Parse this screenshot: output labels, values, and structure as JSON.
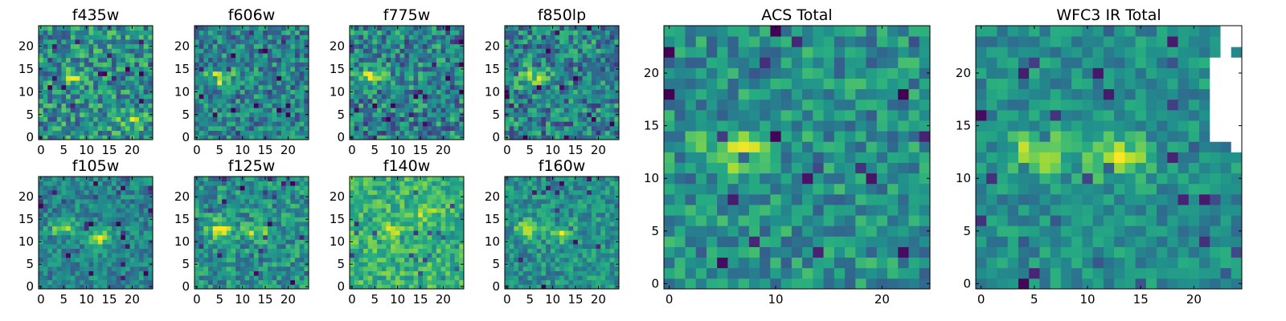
{
  "figure": {
    "background": "#ffffff",
    "colormap": "viridis",
    "missing_color": "#ffffff"
  },
  "chart_data": [
    {
      "type": "heatmap",
      "title": "f435w",
      "xlim": [
        0,
        24
      ],
      "ylim": [
        0,
        24
      ],
      "xticks": [
        0,
        5,
        10,
        15,
        20
      ],
      "yticks": [
        0,
        5,
        10,
        15,
        20
      ],
      "grid": false,
      "cells_per_side": 25,
      "sources": [
        {
          "x": 7,
          "y": 13,
          "strength": 0.35
        },
        {
          "x": 20,
          "y": 4,
          "strength": 0.25
        }
      ],
      "noise_level": 0.45,
      "base_level": 0.5
    },
    {
      "type": "heatmap",
      "title": "f606w",
      "xlim": [
        0,
        24
      ],
      "ylim": [
        0,
        24
      ],
      "xticks": [
        0,
        5,
        10,
        15,
        20
      ],
      "yticks": [
        0,
        5,
        10,
        15,
        20
      ],
      "grid": false,
      "cells_per_side": 25,
      "sources": [
        {
          "x": 5,
          "y": 13,
          "strength": 0.45
        }
      ],
      "noise_level": 0.4,
      "base_level": 0.45
    },
    {
      "type": "heatmap",
      "title": "f775w",
      "xlim": [
        0,
        24
      ],
      "ylim": [
        0,
        24
      ],
      "xticks": [
        0,
        5,
        10,
        15,
        20
      ],
      "yticks": [
        0,
        5,
        10,
        15,
        20
      ],
      "grid": false,
      "cells_per_side": 25,
      "sources": [
        {
          "x": 4,
          "y": 13,
          "strength": 0.4
        }
      ],
      "noise_level": 0.45,
      "base_level": 0.45
    },
    {
      "type": "heatmap",
      "title": "f850lp",
      "xlim": [
        0,
        24
      ],
      "ylim": [
        0,
        24
      ],
      "xticks": [
        0,
        5,
        10,
        15,
        20
      ],
      "yticks": [
        0,
        5,
        10,
        15,
        20
      ],
      "grid": false,
      "cells_per_side": 25,
      "sources": [
        {
          "x": 6,
          "y": 13,
          "strength": 0.4
        }
      ],
      "noise_level": 0.45,
      "base_level": 0.45
    },
    {
      "type": "heatmap",
      "title": "f105w",
      "xlim": [
        0,
        24
      ],
      "ylim": [
        0,
        24
      ],
      "xticks": [
        0,
        5,
        10,
        15,
        20
      ],
      "yticks": [
        0,
        5,
        10,
        15,
        20
      ],
      "grid": false,
      "cells_per_side": 25,
      "sources": [
        {
          "x": 5,
          "y": 13,
          "strength": 0.35
        },
        {
          "x": 13,
          "y": 11,
          "strength": 0.45
        }
      ],
      "noise_level": 0.3,
      "base_level": 0.45
    },
    {
      "type": "heatmap",
      "title": "f125w",
      "xlim": [
        0,
        24
      ],
      "ylim": [
        0,
        24
      ],
      "xticks": [
        0,
        5,
        10,
        15,
        20
      ],
      "yticks": [
        0,
        5,
        10,
        15,
        20
      ],
      "grid": false,
      "cells_per_side": 25,
      "sources": [
        {
          "x": 5,
          "y": 13,
          "strength": 0.4
        },
        {
          "x": 13,
          "y": 12,
          "strength": 0.3
        }
      ],
      "noise_level": 0.35,
      "base_level": 0.5
    },
    {
      "type": "heatmap",
      "title": "f140w",
      "xlim": [
        0,
        24
      ],
      "ylim": [
        0,
        24
      ],
      "xticks": [
        0,
        5,
        10,
        15,
        20
      ],
      "yticks": [
        0,
        5,
        10,
        15,
        20
      ],
      "grid": false,
      "cells_per_side": 25,
      "sources": [
        {
          "x": 8,
          "y": 12,
          "strength": 0.2
        },
        {
          "x": 16,
          "y": 16,
          "strength": 0.2
        }
      ],
      "noise_level": 0.3,
      "base_level": 0.65
    },
    {
      "type": "heatmap",
      "title": "f160w",
      "xlim": [
        0,
        24
      ],
      "ylim": [
        0,
        24
      ],
      "xticks": [
        0,
        5,
        10,
        15,
        20
      ],
      "yticks": [
        0,
        5,
        10,
        15,
        20
      ],
      "grid": false,
      "cells_per_side": 25,
      "sources": [
        {
          "x": 5,
          "y": 13,
          "strength": 0.4
        },
        {
          "x": 12,
          "y": 12,
          "strength": 0.4
        }
      ],
      "noise_level": 0.3,
      "base_level": 0.5
    },
    {
      "type": "heatmap",
      "title": "ACS Total",
      "xlim": [
        0,
        24
      ],
      "ylim": [
        0,
        24
      ],
      "xticks": [
        0,
        10,
        20
      ],
      "yticks": [
        0,
        5,
        10,
        15,
        20
      ],
      "grid": false,
      "cells_per_side": 25,
      "sources": [
        {
          "x": 6,
          "y": 12.5,
          "strength": 0.45
        }
      ],
      "noise_level": 0.35,
      "base_level": 0.5
    },
    {
      "type": "heatmap",
      "title": "WFC3 IR Total",
      "xlim": [
        0,
        24
      ],
      "ylim": [
        0,
        24
      ],
      "xticks": [
        0,
        5,
        10,
        15,
        20
      ],
      "yticks": [
        0,
        5,
        10,
        15,
        20
      ],
      "grid": false,
      "cells_per_side": 25,
      "sources": [
        {
          "x": 5.5,
          "y": 12.5,
          "strength": 0.4
        },
        {
          "x": 13,
          "y": 12,
          "strength": 0.4
        }
      ],
      "noise_level": 0.25,
      "base_level": 0.5,
      "missing_cells": [
        [
          23,
          23
        ],
        [
          23,
          22
        ],
        [
          22,
          21
        ],
        [
          22,
          20
        ],
        [
          22,
          19
        ],
        [
          22,
          18
        ],
        [
          22,
          17
        ],
        [
          22,
          16
        ],
        [
          22,
          15
        ],
        [
          22,
          14
        ],
        [
          23,
          14
        ],
        [
          23,
          15
        ],
        [
          23,
          16
        ],
        [
          23,
          17
        ],
        [
          23,
          18
        ],
        [
          23,
          19
        ],
        [
          23,
          20
        ],
        [
          23,
          21
        ],
        [
          24,
          15
        ],
        [
          24,
          16
        ],
        [
          24,
          17
        ],
        [
          24,
          18
        ],
        [
          24,
          19
        ],
        [
          24,
          20
        ],
        [
          24,
          14
        ],
        [
          24,
          13
        ],
        [
          24,
          21
        ],
        [
          24,
          23
        ],
        [
          24,
          24
        ],
        [
          23,
          24
        ]
      ]
    }
  ]
}
